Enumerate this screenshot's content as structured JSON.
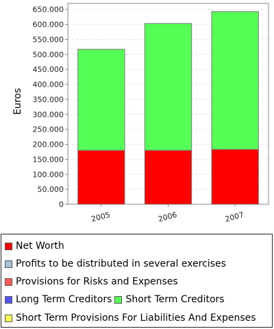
{
  "chart_data": {
    "type": "bar",
    "stacked": true,
    "categories": [
      "2005",
      "2006",
      "2007"
    ],
    "ylabel": "Euros",
    "ylim": [
      0,
      670000
    ],
    "y_ticks": [
      "0",
      "50.000",
      "100.000",
      "150.000",
      "200.000",
      "250.000",
      "300.000",
      "350.000",
      "400.000",
      "450.000",
      "500.000",
      "550.000",
      "600.000",
      "650.000"
    ],
    "grid": true,
    "legend_placement": "bottom",
    "series": [
      {
        "name": "Net Worth",
        "color": "#ff0000",
        "values": [
          180000,
          180000,
          183000
        ]
      },
      {
        "name": "Profits to be distributed in several exercises",
        "color": "#a6c1d8",
        "values": [
          0,
          0,
          0
        ]
      },
      {
        "name": "Provisions for Risks and Expenses",
        "color": "#ff5a5a",
        "values": [
          0,
          0,
          0
        ]
      },
      {
        "name": "Long Term Creditors",
        "color": "#5555ff",
        "values": [
          0,
          0,
          0
        ]
      },
      {
        "name": "Short Term Creditors",
        "color": "#55ff55",
        "values": [
          337000,
          423000,
          460000
        ]
      },
      {
        "name": "Short Term Provisions For Liabilities And Expenses",
        "color": "#ffff55",
        "values": [
          0,
          0,
          0
        ]
      }
    ]
  }
}
